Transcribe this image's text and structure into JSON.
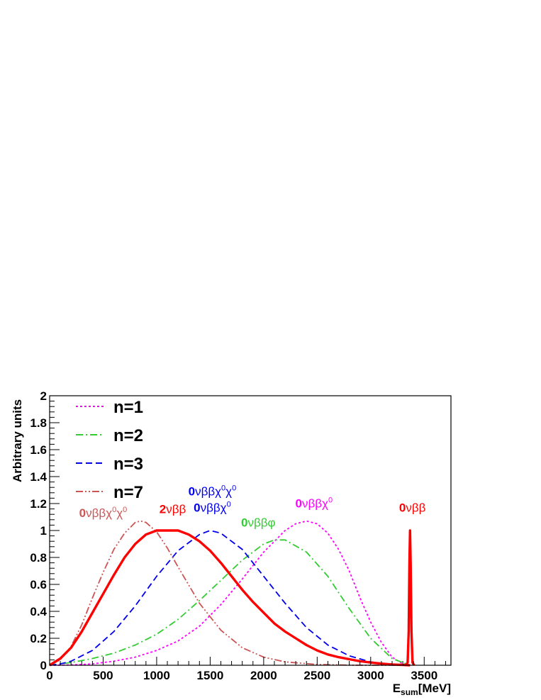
{
  "chart_data": {
    "type": "line",
    "title": "",
    "xlabel": {
      "main": "E",
      "sub": "sum",
      "rest": "[MeV]"
    },
    "ylabel": "Arbitrary units",
    "xlim": [
      0,
      3750
    ],
    "ylim": [
      0,
      2
    ],
    "x_ticks": [
      0,
      500,
      1000,
      1500,
      2000,
      2500,
      3000,
      3500
    ],
    "x_tick_labels": [
      "0",
      "500",
      "1000",
      "1500",
      "2000",
      "2500",
      "3000",
      "3500"
    ],
    "y_ticks": [
      0,
      0.2,
      0.4,
      0.6,
      0.8,
      1,
      1.2,
      1.4,
      1.6,
      1.8,
      2
    ],
    "y_tick_labels": [
      "0",
      "0.2",
      "0.4",
      "0.6",
      "0.8",
      "1",
      "1.2",
      "1.4",
      "1.6",
      "1.8",
      "2"
    ],
    "grid": false,
    "legend_position": "top-left",
    "series": [
      {
        "name": "n=1",
        "color": "#ff00ff",
        "dash": "dotted",
        "x": [
          0,
          200,
          400,
          600,
          800,
          1000,
          1200,
          1400,
          1600,
          1800,
          2000,
          2200,
          2300,
          2400,
          2500,
          2600,
          2700,
          2800,
          2900,
          3000,
          3100,
          3200,
          3300,
          3368
        ],
        "y": [
          0,
          0.002,
          0.01,
          0.03,
          0.06,
          0.11,
          0.18,
          0.29,
          0.45,
          0.64,
          0.84,
          1.0,
          1.05,
          1.07,
          1.05,
          0.98,
          0.86,
          0.7,
          0.5,
          0.32,
          0.17,
          0.06,
          0.01,
          0
        ]
      },
      {
        "name": "n=2",
        "color": "#33cc33",
        "dash": "dashdot",
        "x": [
          0,
          200,
          400,
          600,
          800,
          1000,
          1200,
          1400,
          1600,
          1800,
          2000,
          2100,
          2200,
          2400,
          2600,
          2800,
          3000,
          3200,
          3368
        ],
        "y": [
          0,
          0.02,
          0.05,
          0.09,
          0.15,
          0.23,
          0.34,
          0.48,
          0.63,
          0.78,
          0.9,
          0.93,
          0.93,
          0.84,
          0.66,
          0.42,
          0.2,
          0.05,
          0
        ]
      },
      {
        "name": "n=3",
        "color": "#0000ee",
        "dash": "dashed",
        "x": [
          0,
          100,
          200,
          400,
          600,
          800,
          1000,
          1200,
          1400,
          1500,
          1600,
          1800,
          2000,
          2200,
          2400,
          2600,
          2800,
          3000,
          3200,
          3368
        ],
        "y": [
          0,
          0.01,
          0.03,
          0.11,
          0.25,
          0.44,
          0.66,
          0.85,
          0.97,
          1.0,
          0.98,
          0.86,
          0.66,
          0.46,
          0.28,
          0.15,
          0.07,
          0.025,
          0.005,
          0
        ]
      },
      {
        "name": "n=7",
        "color": "#cc5555",
        "dash": "dashdotdot",
        "x": [
          0,
          100,
          200,
          300,
          400,
          500,
          600,
          700,
          800,
          850,
          900,
          1000,
          1100,
          1200,
          1400,
          1600,
          1800,
          2000,
          2200,
          2500,
          2800,
          3000,
          3368
        ],
        "y": [
          0,
          0.04,
          0.14,
          0.3,
          0.5,
          0.69,
          0.86,
          0.98,
          1.06,
          1.07,
          1.06,
          0.99,
          0.87,
          0.73,
          0.46,
          0.26,
          0.13,
          0.06,
          0.025,
          0.006,
          0.001,
          0,
          0
        ]
      },
      {
        "name": "2νββ",
        "color": "#ff0000",
        "dash": "solid",
        "width": 3.4,
        "x": [
          0,
          100,
          200,
          300,
          400,
          500,
          600,
          700,
          800,
          900,
          1000,
          1100,
          1200,
          1300,
          1400,
          1500,
          1600,
          1700,
          1800,
          1900,
          2000,
          2100,
          2200,
          2300,
          2400,
          2500,
          2600,
          2700,
          2800,
          2900,
          3000,
          3100,
          3200,
          3300,
          3368
        ],
        "y": [
          0,
          0.05,
          0.13,
          0.25,
          0.39,
          0.53,
          0.67,
          0.8,
          0.9,
          0.97,
          1.0,
          1.0,
          1.0,
          0.97,
          0.92,
          0.85,
          0.76,
          0.66,
          0.56,
          0.47,
          0.39,
          0.31,
          0.25,
          0.2,
          0.15,
          0.11,
          0.08,
          0.06,
          0.045,
          0.03,
          0.02,
          0.012,
          0.006,
          0.002,
          0
        ]
      },
      {
        "name": "0νββ",
        "color": "#ff0000",
        "dash": "solid",
        "width": 3.4,
        "x": [
          3330,
          3345,
          3355,
          3362,
          3368,
          3374,
          3381,
          3391,
          3406
        ],
        "y": [
          0,
          0.02,
          0.25,
          0.75,
          1.0,
          0.75,
          0.25,
          0.02,
          0
        ]
      }
    ],
    "legend": [
      {
        "label": "n=1",
        "color": "#ff00ff",
        "dash": "dotted"
      },
      {
        "label": "n=2",
        "color": "#33cc33",
        "dash": "dashdot"
      },
      {
        "label": "n=3",
        "color": "#0000ee",
        "dash": "dashed"
      },
      {
        "label": "n=7",
        "color": "#cc5555",
        "dash": "dashdotdot"
      }
    ],
    "annotations": [
      {
        "id": "ann-0vbbxx-n7",
        "color": "#cc5555",
        "x": 500,
        "y": 1.1,
        "parts": [
          {
            "t": "0",
            "b": true
          },
          {
            "t": "νββχ"
          },
          {
            "t": "0",
            "sup": true
          },
          {
            "t": "χ"
          },
          {
            "t": "0",
            "sup": true
          }
        ]
      },
      {
        "id": "ann-2vbb",
        "color": "#ff0000",
        "x": 1150,
        "y": 1.13,
        "parts": [
          {
            "t": "2",
            "b": true
          },
          {
            "t": "νββ"
          }
        ]
      },
      {
        "id": "ann-0vbbxx-n3",
        "color": "#0000ee",
        "x": 1520,
        "y": 1.26,
        "parts": [
          {
            "t": "0",
            "b": true
          },
          {
            "t": "νββχ"
          },
          {
            "t": "0",
            "sup": true
          },
          {
            "t": "χ"
          },
          {
            "t": "0",
            "sup": true
          }
        ]
      },
      {
        "id": "ann-0vbbx-n3",
        "color": "#0000ee",
        "x": 1520,
        "y": 1.14,
        "parts": [
          {
            "t": "0",
            "b": true
          },
          {
            "t": "νββχ"
          },
          {
            "t": "0",
            "sup": true
          }
        ]
      },
      {
        "id": "ann-0vbbphi",
        "color": "#33cc33",
        "x": 1950,
        "y": 1.03,
        "parts": [
          {
            "t": "0",
            "b": true
          },
          {
            "t": "νββφ"
          }
        ]
      },
      {
        "id": "ann-0vbbx-n1",
        "color": "#ff00ff",
        "x": 2470,
        "y": 1.17,
        "parts": [
          {
            "t": "0",
            "b": true
          },
          {
            "t": "νββχ"
          },
          {
            "t": "0",
            "sup": true
          }
        ]
      },
      {
        "id": "ann-0vbb",
        "color": "#ff0000",
        "x": 3390,
        "y": 1.14,
        "parts": [
          {
            "t": "0",
            "b": true
          },
          {
            "t": "νββ"
          }
        ]
      }
    ]
  }
}
